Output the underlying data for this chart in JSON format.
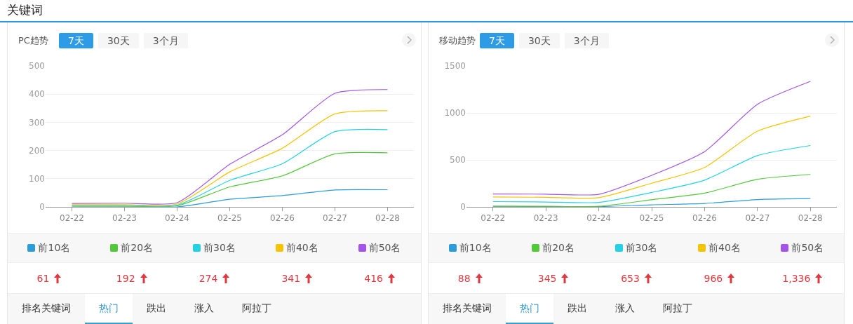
{
  "chart_data": [
    {
      "type": "line",
      "title": "PC趋势",
      "categories": [
        "02-22",
        "02-23",
        "02-24",
        "02-25",
        "02-26",
        "02-27",
        "02-28"
      ],
      "series": [
        {
          "name": "前10名",
          "color": "#2d9cdb",
          "values": [
            0,
            0,
            0,
            27,
            40,
            60,
            61
          ]
        },
        {
          "name": "前20名",
          "color": "#52c93a",
          "values": [
            3,
            3,
            4,
            71,
            110,
            188,
            192
          ]
        },
        {
          "name": "前30名",
          "color": "#23d3e3",
          "values": [
            5,
            5,
            6,
            94,
            153,
            267,
            274
          ]
        },
        {
          "name": "前40名",
          "color": "#f5c400",
          "values": [
            8,
            8,
            10,
            124,
            208,
            330,
            341
          ]
        },
        {
          "name": "前50名",
          "color": "#a255e8",
          "values": [
            12,
            13,
            15,
            151,
            256,
            403,
            416
          ]
        }
      ],
      "ylim": [
        0,
        500
      ],
      "yticks": [
        0,
        100,
        200,
        300,
        400,
        500
      ],
      "grid": "y",
      "legend": "bottom",
      "annotations": [
        "关键词",
        "7天",
        "30天",
        "3个月",
        "61",
        "192",
        "274",
        "341",
        "416",
        "排名关键词",
        "热门",
        "跌出",
        "涨入",
        "阿拉丁"
      ]
    },
    {
      "type": "line",
      "title": "移动趋势",
      "categories": [
        "02-22",
        "02-23",
        "02-24",
        "02-25",
        "02-26",
        "02-27",
        "02-28"
      ],
      "series": [
        {
          "name": "前10名",
          "color": "#2d9cdb",
          "values": [
            2,
            3,
            3,
            22,
            36,
            78,
            88
          ]
        },
        {
          "name": "前20名",
          "color": "#52c93a",
          "values": [
            8,
            7,
            6,
            76,
            146,
            294,
            345
          ]
        },
        {
          "name": "前30名",
          "color": "#23d3e3",
          "values": [
            56,
            52,
            48,
            154,
            285,
            546,
            653
          ]
        },
        {
          "name": "前40名",
          "color": "#f5c400",
          "values": [
            106,
            102,
            98,
            252,
            420,
            806,
            966
          ]
        },
        {
          "name": "前50名",
          "color": "#a255e8",
          "values": [
            137,
            136,
            134,
            336,
            588,
            1092,
            1336
          ]
        }
      ],
      "ylim": [
        0,
        1500
      ],
      "yticks": [
        0,
        500,
        1000,
        1500
      ],
      "grid": "y",
      "legend": "bottom",
      "annotations": [
        "7天",
        "30天",
        "3个月",
        "88",
        "345",
        "653",
        "966",
        "1,336",
        "排名关键词",
        "热门",
        "跌出",
        "涨入",
        "阿拉丁"
      ]
    }
  ]
}
